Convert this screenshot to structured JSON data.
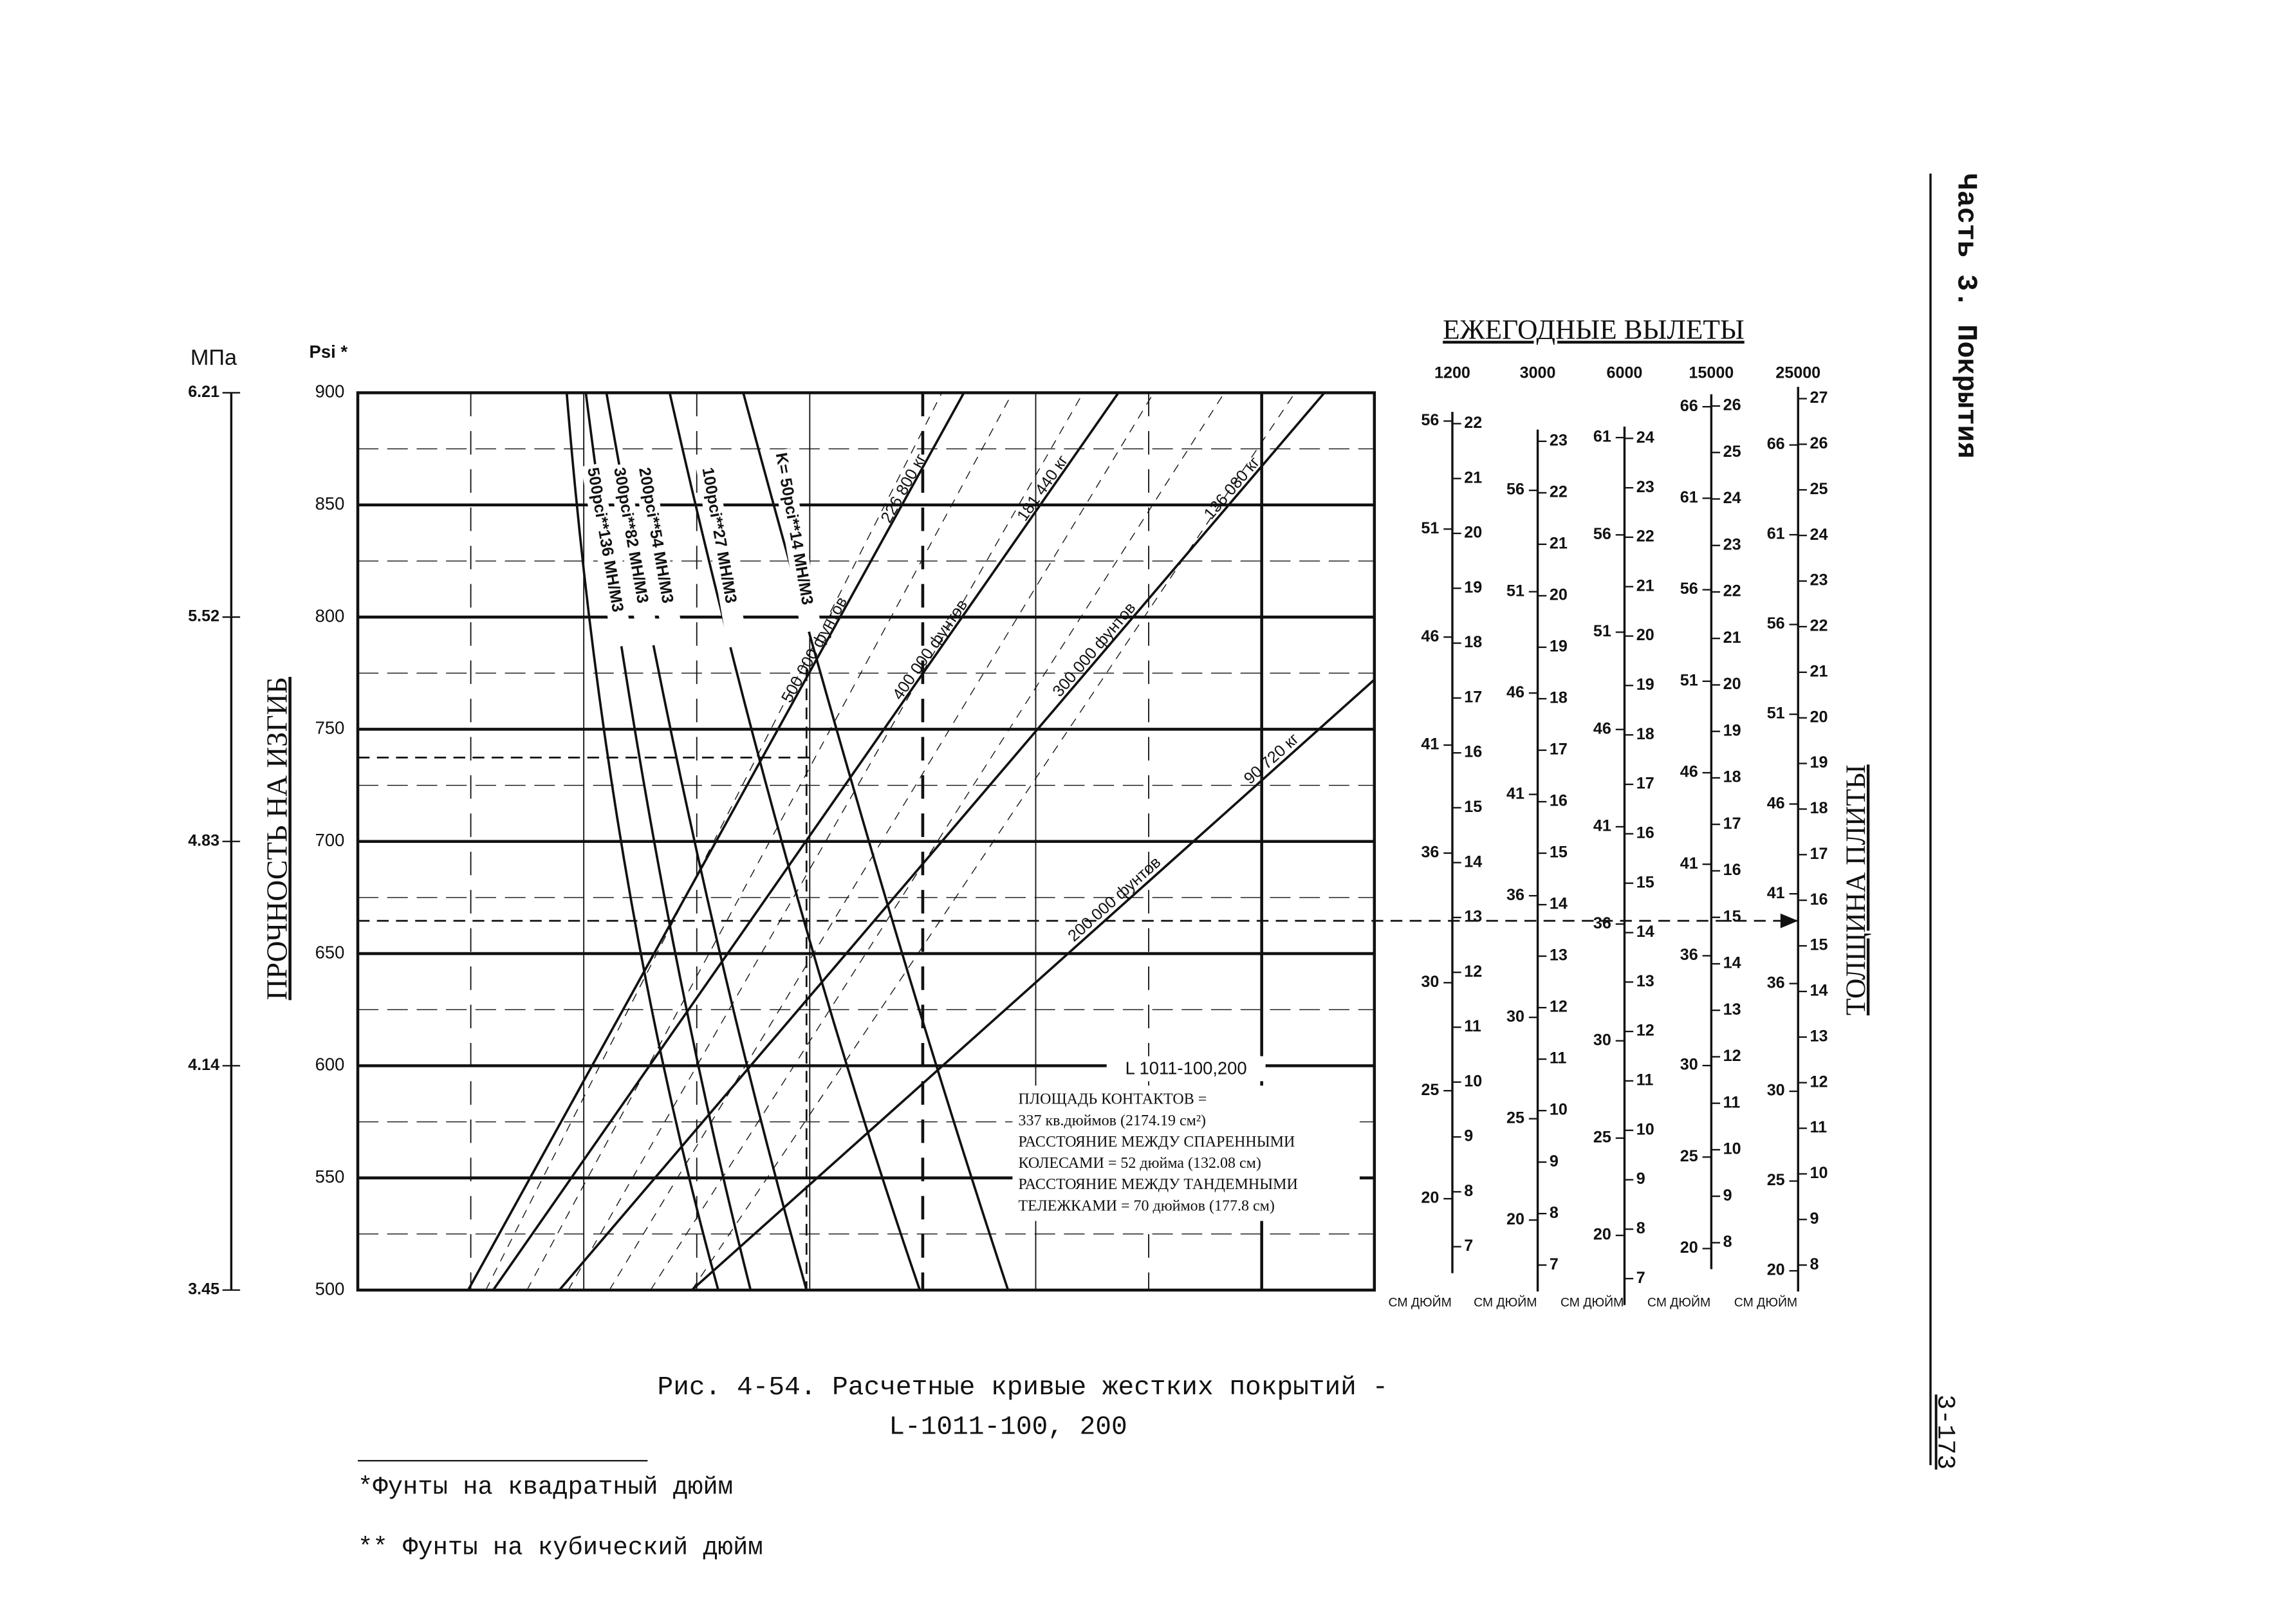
{
  "header": {
    "section": "Часть 3. Покрытия",
    "page_number": "3-173"
  },
  "figure": {
    "stress_axis": {
      "title": "ПРОЧНОСТЬ НА ИЗГИБ",
      "mpa_unit": "МПа",
      "mpa_ticks": [
        "6.21",
        "5.52",
        "4.83",
        "4.14",
        "3.45"
      ],
      "psi_unit": "Psi *",
      "psi_ticks": [
        "900",
        "850",
        "800",
        "750",
        "700",
        "650",
        "600",
        "550",
        "500"
      ]
    },
    "k_curves": [
      "500pci**136 МН/М3",
      "300pci**82 МН/М3",
      "200pci**54 МН/М3",
      "100pci**27 МН/М3",
      "K= 50pci**14 МН/М3"
    ],
    "load_lines": [
      {
        "lb": "500 000 фунтов",
        "kg": "226 800 кг"
      },
      {
        "lb": "400 000 фунтов",
        "kg": "181 440 кг"
      },
      {
        "lb": "300 000 фунтов",
        "kg": "136 080 кг"
      },
      {
        "lb": "200 000 фунтов",
        "kg": "90 720 кг"
      }
    ],
    "aircraft_label": "L 1011-100,200",
    "notes": [
      "ПЛОЩАДЬ КОНТАКТОВ =",
      "337 кв.дюймов (2174.19 см²)",
      "РАССТОЯНИЕ МЕЖДУ СПАРЕННЫМИ",
      "КОЛЕСАМИ = 52 дюйма (132.08 см)",
      "РАССТОЯНИЕ МЕЖДУ ТАНДЕМНЫМИ",
      "ТЕЛЕЖКАМИ = 70 дюймов (177.8 см)"
    ],
    "departures": {
      "title": "ЕЖЕГОДНЫЕ ВЫЛЕТЫ",
      "thickness_title": "ТОЛЩИНА ПЛИТЫ",
      "unit_label": "СМ ДЮЙМ",
      "columns": [
        {
          "departures": "1200",
          "cm": [
            "56",
            "51",
            "46",
            "41",
            "36",
            "30",
            "25",
            "20"
          ],
          "inch": [
            "22",
            "21",
            "20",
            "19",
            "18",
            "17",
            "16",
            "15",
            "14",
            "13",
            "12",
            "11",
            "10",
            "9",
            "8",
            "7"
          ]
        },
        {
          "departures": "3000",
          "cm": [
            "56",
            "51",
            "46",
            "41",
            "36",
            "30",
            "25",
            "20"
          ],
          "inch": [
            "23",
            "22",
            "21",
            "20",
            "19",
            "18",
            "17",
            "16",
            "15",
            "14",
            "13",
            "12",
            "11",
            "10",
            "9",
            "8",
            "7"
          ]
        },
        {
          "departures": "6000",
          "cm": [
            "61",
            "56",
            "51",
            "46",
            "41",
            "36",
            "30",
            "25",
            "20"
          ],
          "inch": [
            "24",
            "23",
            "22",
            "21",
            "20",
            "19",
            "18",
            "17",
            "16",
            "15",
            "14",
            "13",
            "12",
            "11",
            "10",
            "9",
            "8",
            "7"
          ]
        },
        {
          "departures": "15000",
          "cm": [
            "66",
            "61",
            "56",
            "51",
            "46",
            "41",
            "36",
            "30",
            "25",
            "20"
          ],
          "inch": [
            "26",
            "25",
            "24",
            "23",
            "22",
            "21",
            "20",
            "19",
            "18",
            "17",
            "16",
            "15",
            "14",
            "13",
            "12",
            "11",
            "10",
            "9",
            "8"
          ]
        },
        {
          "departures": "25000",
          "cm": [
            "66",
            "61",
            "56",
            "51",
            "46",
            "41",
            "36",
            "30",
            "25",
            "20"
          ],
          "inch": [
            "27",
            "26",
            "25",
            "24",
            "23",
            "22",
            "21",
            "20",
            "19",
            "18",
            "17",
            "16",
            "15",
            "14",
            "13",
            "12",
            "11",
            "10",
            "9",
            "8"
          ]
        }
      ]
    }
  },
  "caption": [
    "Рис. 4-54.  Расчетные кривые жестких покрытий -",
    "L-1011-100, 200"
  ],
  "footnotes": [
    "*Фунты  на квадратный дюйм",
    "** Фунты на кубический дюйм"
  ]
}
